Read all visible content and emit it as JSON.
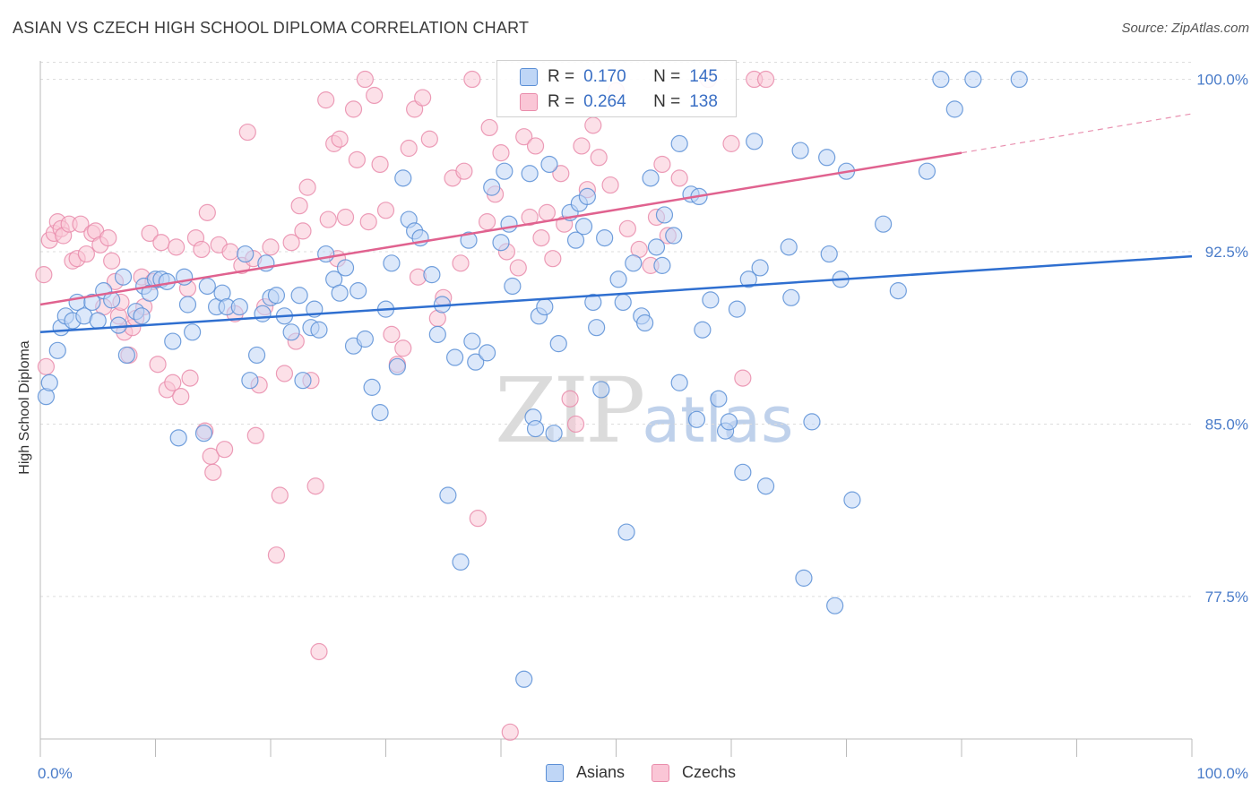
{
  "header": {
    "title": "ASIAN VS CZECH HIGH SCHOOL DIPLOMA CORRELATION CHART",
    "source": "Source: ZipAtlas.com"
  },
  "watermark": {
    "zip": "ZIP",
    "atlas": "atlas"
  },
  "stats": {
    "asians": {
      "r_label": "R =",
      "r_value": "0.170",
      "n_label": "N =",
      "n_value": "145"
    },
    "czechs": {
      "r_label": "R =",
      "r_value": "0.264",
      "n_label": "N =",
      "n_value": "138"
    }
  },
  "legend": {
    "asians": "Asians",
    "czechs": "Czechs"
  },
  "colors": {
    "asians_fill": "#bfd6f6",
    "asians_stroke": "#5b8fd6",
    "asians_line": "#2f6fd0",
    "czechs_fill": "#fac6d6",
    "czechs_stroke": "#e98cab",
    "czechs_line": "#e0628f",
    "grid": "#dddddd",
    "tick_text": "#4a7cc9"
  },
  "chart_data": {
    "type": "scatter",
    "title": "ASIAN VS CZECH HIGH SCHOOL DIPLOMA CORRELATION CHART",
    "xlabel": "",
    "ylabel": "High School Diploma",
    "xlim": [
      0,
      100
    ],
    "ylim": [
      71.3,
      100.8
    ],
    "x_tick_labels": [
      "0.0%",
      "100.0%"
    ],
    "y_ticks": [
      100.0,
      92.5,
      85.0,
      77.5
    ],
    "y_tick_labels": [
      "100.0%",
      "92.5%",
      "85.0%",
      "77.5%"
    ],
    "grid": "horizontal dashed",
    "legend_position": "bottom-center",
    "series": [
      {
        "name": "Asians",
        "r": 0.17,
        "n": 145,
        "trend": [
          [
            0,
            89.0
          ],
          [
            100,
            92.3
          ]
        ],
        "points": [
          [
            0.5,
            86.2
          ],
          [
            0.8,
            86.8
          ],
          [
            1.5,
            88.2
          ],
          [
            1.8,
            89.2
          ],
          [
            2.2,
            89.7
          ],
          [
            2.8,
            89.5
          ],
          [
            3.2,
            90.3
          ],
          [
            3.8,
            89.7
          ],
          [
            4.5,
            90.3
          ],
          [
            5.0,
            89.5
          ],
          [
            5.5,
            90.8
          ],
          [
            6.2,
            90.4
          ],
          [
            6.8,
            89.3
          ],
          [
            7.2,
            91.4
          ],
          [
            7.5,
            88.0
          ],
          [
            8.3,
            89.9
          ],
          [
            8.8,
            89.7
          ],
          [
            9.0,
            91.0
          ],
          [
            9.5,
            90.7
          ],
          [
            10.0,
            91.3
          ],
          [
            10.5,
            91.3
          ],
          [
            11.0,
            91.2
          ],
          [
            11.5,
            88.6
          ],
          [
            12.0,
            84.4
          ],
          [
            12.5,
            91.4
          ],
          [
            12.8,
            90.2
          ],
          [
            13.2,
            89.0
          ],
          [
            14.2,
            84.6
          ],
          [
            14.5,
            91.0
          ],
          [
            15.3,
            90.1
          ],
          [
            15.8,
            90.7
          ],
          [
            16.2,
            90.1
          ],
          [
            17.3,
            90.1
          ],
          [
            17.8,
            92.4
          ],
          [
            18.2,
            86.9
          ],
          [
            18.8,
            88.0
          ],
          [
            19.3,
            89.8
          ],
          [
            19.6,
            92.0
          ],
          [
            20.0,
            90.5
          ],
          [
            20.5,
            90.6
          ],
          [
            21.2,
            89.7
          ],
          [
            21.8,
            89.0
          ],
          [
            22.5,
            90.6
          ],
          [
            22.8,
            86.9
          ],
          [
            23.5,
            89.2
          ],
          [
            23.8,
            90.0
          ],
          [
            24.2,
            89.1
          ],
          [
            24.8,
            92.4
          ],
          [
            25.5,
            91.3
          ],
          [
            26.0,
            90.7
          ],
          [
            26.5,
            91.8
          ],
          [
            27.2,
            88.4
          ],
          [
            27.6,
            90.8
          ],
          [
            28.2,
            88.7
          ],
          [
            28.8,
            86.6
          ],
          [
            29.5,
            85.5
          ],
          [
            30.0,
            90.0
          ],
          [
            30.5,
            92.0
          ],
          [
            31.0,
            87.5
          ],
          [
            31.5,
            95.7
          ],
          [
            32.0,
            93.9
          ],
          [
            32.5,
            93.4
          ],
          [
            33.0,
            93.1
          ],
          [
            34.0,
            91.5
          ],
          [
            34.5,
            88.9
          ],
          [
            34.9,
            90.2
          ],
          [
            35.4,
            81.9
          ],
          [
            36.0,
            87.9
          ],
          [
            36.5,
            79.0
          ],
          [
            37.2,
            93.0
          ],
          [
            37.5,
            88.6
          ],
          [
            37.8,
            87.7
          ],
          [
            38.8,
            88.1
          ],
          [
            39.2,
            95.3
          ],
          [
            40.0,
            92.9
          ],
          [
            40.3,
            96.0
          ],
          [
            40.7,
            93.7
          ],
          [
            41.0,
            91.0
          ],
          [
            42.0,
            73.9
          ],
          [
            42.5,
            95.9
          ],
          [
            42.8,
            85.3
          ],
          [
            43.0,
            84.8
          ],
          [
            43.3,
            89.7
          ],
          [
            43.8,
            90.1
          ],
          [
            44.2,
            96.3
          ],
          [
            44.6,
            84.6
          ],
          [
            45.0,
            88.5
          ],
          [
            46.0,
            94.2
          ],
          [
            46.5,
            93.0
          ],
          [
            46.8,
            94.6
          ],
          [
            47.2,
            93.6
          ],
          [
            47.5,
            94.9
          ],
          [
            48.0,
            90.3
          ],
          [
            48.3,
            89.2
          ],
          [
            48.7,
            86.5
          ],
          [
            49.0,
            93.1
          ],
          [
            50.2,
            91.3
          ],
          [
            50.6,
            90.3
          ],
          [
            50.9,
            80.3
          ],
          [
            51.5,
            92.0
          ],
          [
            52.2,
            89.7
          ],
          [
            52.5,
            89.4
          ],
          [
            53.0,
            95.7
          ],
          [
            53.5,
            92.7
          ],
          [
            54.0,
            91.9
          ],
          [
            54.2,
            94.1
          ],
          [
            55.0,
            93.2
          ],
          [
            55.5,
            86.8
          ],
          [
            55.5,
            97.2
          ],
          [
            56.5,
            95.0
          ],
          [
            57.0,
            85.2
          ],
          [
            57.2,
            94.9
          ],
          [
            57.5,
            89.1
          ],
          [
            58.2,
            90.4
          ],
          [
            58.9,
            86.1
          ],
          [
            59.5,
            84.7
          ],
          [
            59.8,
            85.1
          ],
          [
            60.5,
            90.0
          ],
          [
            61.0,
            82.9
          ],
          [
            61.5,
            91.3
          ],
          [
            62.0,
            97.3
          ],
          [
            62.5,
            91.8
          ],
          [
            63.0,
            82.3
          ],
          [
            65.0,
            92.7
          ],
          [
            65.2,
            90.5
          ],
          [
            66.0,
            96.9
          ],
          [
            66.3,
            78.3
          ],
          [
            67.0,
            85.1
          ],
          [
            68.3,
            96.6
          ],
          [
            68.5,
            92.4
          ],
          [
            69.0,
            77.1
          ],
          [
            69.5,
            91.3
          ],
          [
            70.0,
            96.0
          ],
          [
            70.5,
            81.7
          ],
          [
            73.2,
            93.7
          ],
          [
            74.5,
            90.8
          ],
          [
            77.0,
            96.0
          ],
          [
            78.2,
            100.0
          ],
          [
            79.4,
            98.7
          ],
          [
            81.0,
            100.0
          ],
          [
            85.0,
            100.0
          ]
        ]
      },
      {
        "name": "Czechs",
        "r": 0.264,
        "n": 138,
        "trend": [
          [
            0,
            90.2
          ],
          [
            80,
            96.8
          ]
        ],
        "trend_dashed_extension": [
          [
            80,
            96.8
          ],
          [
            100,
            98.5
          ]
        ],
        "points": [
          [
            0.3,
            91.5
          ],
          [
            0.5,
            87.5
          ],
          [
            0.8,
            93.0
          ],
          [
            1.2,
            93.3
          ],
          [
            1.5,
            93.8
          ],
          [
            1.8,
            93.5
          ],
          [
            2.0,
            93.2
          ],
          [
            2.5,
            93.7
          ],
          [
            2.8,
            92.1
          ],
          [
            3.2,
            92.2
          ],
          [
            3.5,
            93.7
          ],
          [
            4.0,
            92.4
          ],
          [
            4.5,
            93.3
          ],
          [
            4.8,
            93.4
          ],
          [
            5.2,
            92.8
          ],
          [
            5.5,
            90.1
          ],
          [
            5.9,
            93.1
          ],
          [
            6.2,
            92.1
          ],
          [
            6.5,
            91.2
          ],
          [
            6.8,
            89.7
          ],
          [
            7.0,
            90.3
          ],
          [
            7.3,
            89.0
          ],
          [
            7.7,
            88.0
          ],
          [
            8.0,
            89.2
          ],
          [
            8.3,
            89.6
          ],
          [
            8.8,
            91.4
          ],
          [
            9.0,
            90.1
          ],
          [
            9.5,
            93.3
          ],
          [
            9.8,
            91.2
          ],
          [
            10.2,
            87.6
          ],
          [
            10.5,
            92.9
          ],
          [
            11.0,
            86.5
          ],
          [
            11.5,
            86.8
          ],
          [
            11.8,
            92.7
          ],
          [
            12.2,
            86.2
          ],
          [
            12.8,
            90.9
          ],
          [
            13.0,
            87.0
          ],
          [
            13.5,
            93.1
          ],
          [
            14.0,
            92.6
          ],
          [
            14.3,
            84.7
          ],
          [
            14.5,
            94.2
          ],
          [
            14.8,
            83.6
          ],
          [
            15.0,
            82.9
          ],
          [
            15.5,
            92.8
          ],
          [
            16.0,
            83.9
          ],
          [
            16.5,
            92.5
          ],
          [
            16.9,
            89.8
          ],
          [
            17.5,
            91.9
          ],
          [
            18.0,
            97.7
          ],
          [
            18.5,
            92.2
          ],
          [
            18.7,
            84.5
          ],
          [
            19.0,
            86.7
          ],
          [
            19.5,
            90.1
          ],
          [
            20.0,
            92.7
          ],
          [
            20.5,
            79.3
          ],
          [
            20.8,
            81.9
          ],
          [
            21.2,
            87.2
          ],
          [
            21.8,
            92.9
          ],
          [
            22.2,
            88.6
          ],
          [
            22.5,
            94.5
          ],
          [
            22.8,
            93.4
          ],
          [
            23.2,
            95.3
          ],
          [
            23.5,
            86.9
          ],
          [
            23.9,
            82.3
          ],
          [
            24.2,
            75.1
          ],
          [
            24.8,
            99.1
          ],
          [
            25.0,
            93.9
          ],
          [
            25.5,
            97.2
          ],
          [
            25.8,
            92.2
          ],
          [
            26.0,
            97.4
          ],
          [
            26.5,
            94.0
          ],
          [
            27.2,
            98.7
          ],
          [
            27.5,
            96.5
          ],
          [
            28.2,
            100.0
          ],
          [
            28.5,
            93.8
          ],
          [
            29.0,
            99.3
          ],
          [
            29.5,
            96.3
          ],
          [
            30.0,
            94.3
          ],
          [
            30.5,
            88.9
          ],
          [
            31.0,
            87.6
          ],
          [
            31.5,
            88.3
          ],
          [
            32.0,
            97.0
          ],
          [
            32.5,
            98.7
          ],
          [
            32.8,
            91.4
          ],
          [
            33.2,
            99.2
          ],
          [
            33.8,
            97.4
          ],
          [
            34.5,
            89.6
          ],
          [
            35.0,
            90.5
          ],
          [
            35.8,
            95.7
          ],
          [
            36.5,
            92.0
          ],
          [
            36.8,
            96.0
          ],
          [
            37.5,
            100.0
          ],
          [
            38.0,
            80.9
          ],
          [
            38.8,
            93.8
          ],
          [
            39.0,
            97.9
          ],
          [
            39.5,
            95.0
          ],
          [
            40.0,
            96.8
          ],
          [
            40.5,
            92.5
          ],
          [
            40.8,
            71.6
          ],
          [
            41.5,
            91.8
          ],
          [
            42.0,
            97.5
          ],
          [
            42.5,
            94.0
          ],
          [
            43.0,
            97.1
          ],
          [
            43.5,
            93.1
          ],
          [
            44.0,
            94.2
          ],
          [
            44.5,
            92.2
          ],
          [
            45.2,
            95.9
          ],
          [
            45.5,
            93.7
          ],
          [
            46.0,
            86.1
          ],
          [
            46.5,
            85.0
          ],
          [
            47.0,
            97.1
          ],
          [
            47.5,
            95.2
          ],
          [
            48.0,
            98.0
          ],
          [
            48.5,
            96.6
          ],
          [
            49.5,
            95.4
          ],
          [
            50.0,
            99.5
          ],
          [
            51.0,
            93.5
          ],
          [
            52.0,
            92.6
          ],
          [
            53.0,
            91.9
          ],
          [
            53.5,
            94.0
          ],
          [
            54.0,
            96.3
          ],
          [
            54.5,
            93.2
          ],
          [
            55.5,
            95.7
          ],
          [
            58.0,
            100.0
          ],
          [
            60.0,
            97.2
          ],
          [
            61.0,
            87.0
          ],
          [
            62.0,
            100.0
          ],
          [
            63.0,
            100.0
          ]
        ]
      }
    ]
  }
}
